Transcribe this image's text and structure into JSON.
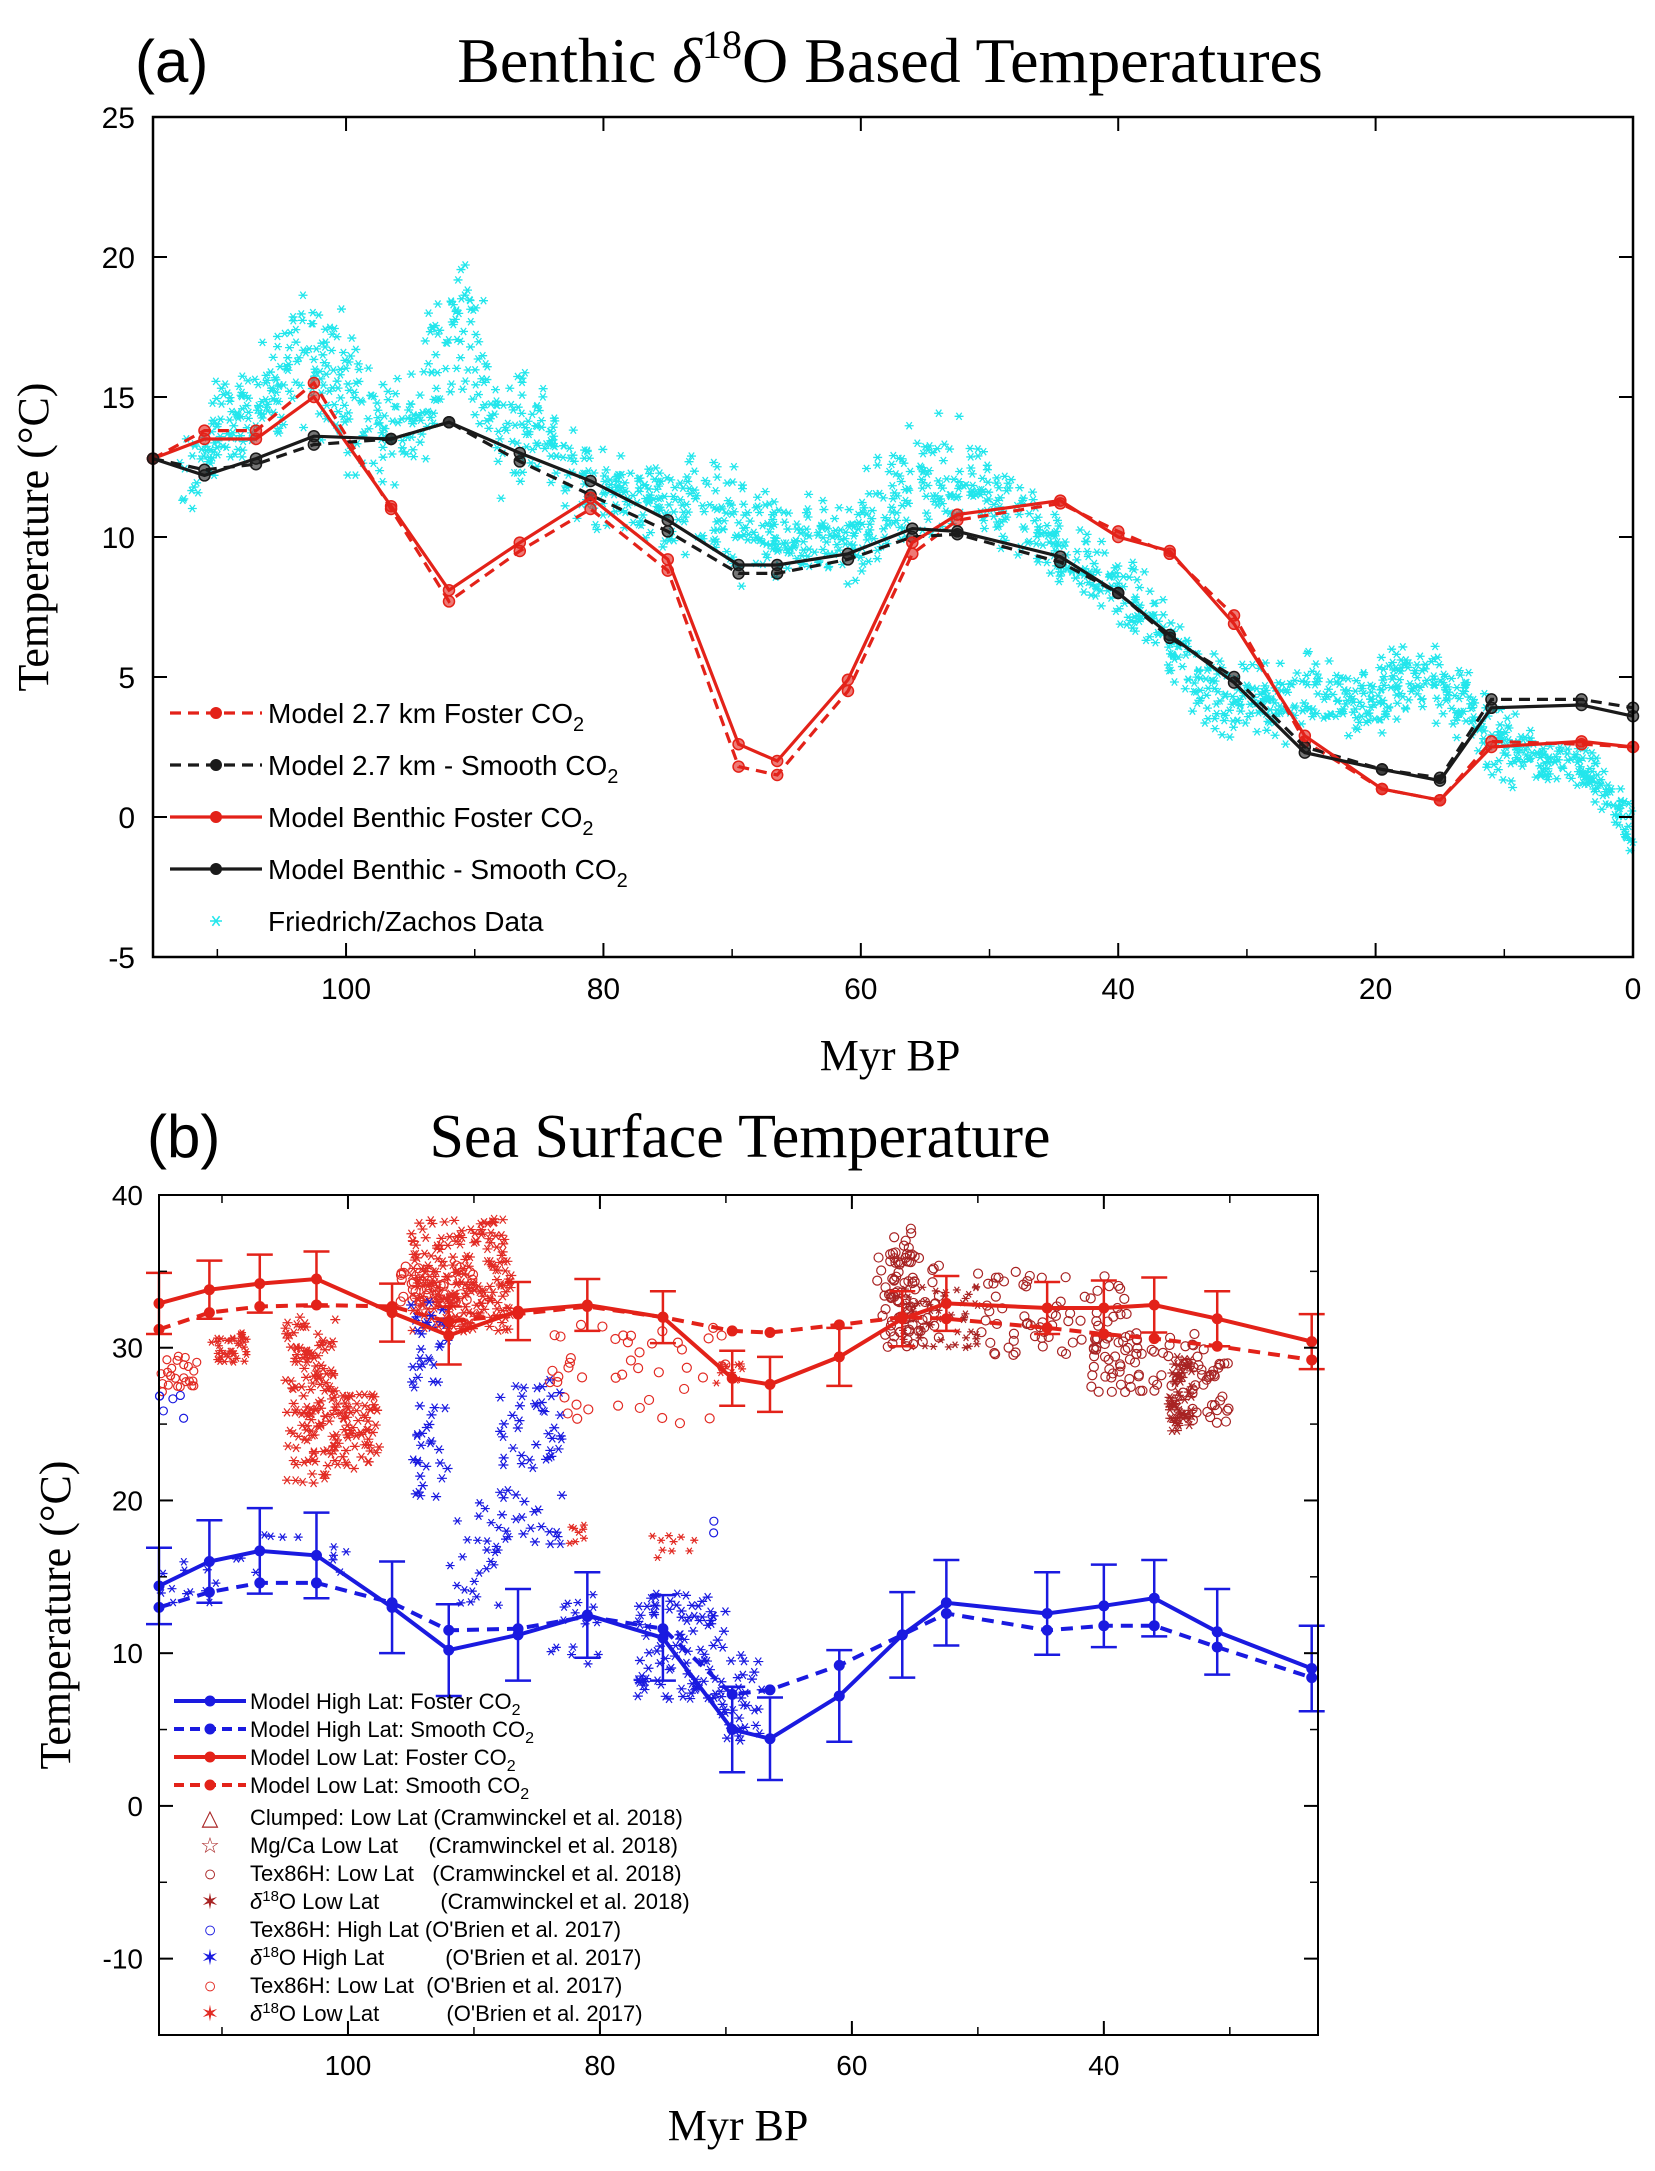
{
  "colors": {
    "red": "#e32219",
    "black": "#1a1a1a",
    "cyan": "#22e6ec",
    "blue": "#1a1ae0",
    "darkred": "#a82323",
    "scatter_red": "#e22b24"
  },
  "chart_data": [
    {
      "panel_label": "(a)",
      "type": "line",
      "title_prefix": "Benthic ",
      "title_delta": "δ",
      "title_sup": "18",
      "title_suffix": "O Based Temperatures",
      "xlabel": "Myr BP",
      "ylabel": "Temperature (°C)",
      "xlim": [
        115,
        0
      ],
      "ylim": [
        -5,
        25
      ],
      "xticks": [
        "100",
        "80",
        "60",
        "40",
        "20",
        "0"
      ],
      "yticks": [
        "25",
        "20",
        "15",
        "10",
        "5",
        "0",
        "-5"
      ],
      "x": [
        115,
        111,
        107,
        102.5,
        96.5,
        92,
        86.5,
        81,
        75,
        69.5,
        66.5,
        61,
        56,
        52.5,
        44.5,
        40,
        36,
        31,
        25.5,
        19.5,
        15,
        11,
        4,
        0
      ],
      "series": [
        {
          "name": "Model 2.7 km Foster CO",
          "sub": "2",
          "style": "dashed",
          "color": "red",
          "values": [
            12.8,
            13.8,
            13.8,
            15.5,
            11.0,
            7.7,
            9.5,
            11.0,
            8.8,
            1.8,
            1.5,
            4.5,
            9.4,
            10.6,
            11.2,
            10.2,
            9.4,
            7.2,
            2.7,
            1.0,
            0.6,
            2.7,
            2.6,
            2.5
          ]
        },
        {
          "name": "Model 2.7 km - Smooth CO",
          "sub": "2",
          "style": "dashed",
          "color": "black",
          "values": [
            12.8,
            12.4,
            12.6,
            13.3,
            13.5,
            14.1,
            12.7,
            11.5,
            10.2,
            8.7,
            8.7,
            9.2,
            10.0,
            10.1,
            9.1,
            8.0,
            6.4,
            5.0,
            2.5,
            1.7,
            1.4,
            4.2,
            4.2,
            3.9
          ]
        },
        {
          "name": "Model Benthic Foster CO",
          "sub": "2",
          "style": "solid",
          "color": "red",
          "values": [
            12.8,
            13.5,
            13.5,
            15.0,
            11.1,
            8.1,
            9.8,
            11.4,
            9.2,
            2.6,
            2.0,
            4.9,
            9.8,
            10.8,
            11.3,
            10.0,
            9.5,
            6.9,
            2.9,
            1.0,
            0.6,
            2.5,
            2.7,
            2.5
          ]
        },
        {
          "name": "Model Benthic - Smooth CO",
          "sub": "2",
          "style": "solid",
          "color": "black",
          "values": [
            12.8,
            12.2,
            12.8,
            13.6,
            13.5,
            14.1,
            13.0,
            12.0,
            10.6,
            9.0,
            9.0,
            9.4,
            10.3,
            10.2,
            9.3,
            8.0,
            6.5,
            4.8,
            2.3,
            1.7,
            1.3,
            3.9,
            4.0,
            3.6
          ]
        }
      ],
      "scatter_legend": "Friedrich/Zachos Data",
      "scatter_envelope": {
        "x": [
          115,
          112,
          109,
          106,
          103,
          100,
          97,
          94,
          91,
          88,
          85,
          82,
          79,
          76,
          73,
          70,
          67,
          64,
          61,
          58,
          55,
          52,
          49,
          46,
          43,
          40,
          37,
          34,
          31,
          28,
          25,
          22,
          19,
          16,
          13,
          10,
          7,
          4,
          2,
          0
        ],
        "center": [
          11,
          12.5,
          14,
          15,
          17,
          15,
          14,
          15,
          18,
          14,
          14,
          12,
          11.5,
          11.5,
          11,
          10.5,
          10,
          10,
          10,
          11,
          12,
          12,
          11,
          10,
          9,
          8,
          7,
          5,
          4,
          4,
          4.5,
          4,
          4.5,
          5,
          4,
          2.5,
          2,
          1.8,
          1,
          -0.5
        ],
        "spread": [
          1.5,
          2,
          2,
          2.5,
          3,
          3,
          2,
          2.5,
          3,
          2.5,
          2,
          1.5,
          1.5,
          2,
          2,
          2,
          1.5,
          1.5,
          1.5,
          2,
          2.5,
          2,
          1.5,
          1.5,
          1.5,
          1.5,
          1.5,
          1.5,
          1.5,
          1.5,
          1.5,
          1.5,
          1.5,
          1.5,
          1.5,
          1.5,
          1.0,
          1.0,
          1.0,
          1.2
        ]
      }
    },
    {
      "panel_label": "(b)",
      "type": "line",
      "title": "Sea Surface Temperature",
      "xlabel": "Myr BP",
      "ylabel": "Temperature (°C)",
      "xlim": [
        115,
        23
      ],
      "ylim": [
        -15,
        40
      ],
      "xticks": [
        "100",
        "80",
        "60",
        "40"
      ],
      "yticks": [
        "40",
        "30",
        "20",
        "10",
        "0",
        "-10"
      ],
      "x": [
        115,
        111,
        107,
        102.5,
        96.5,
        92,
        86.5,
        81,
        75,
        69.5,
        66.5,
        61,
        56,
        52.5,
        44.5,
        40,
        36,
        31,
        23.5
      ],
      "series": [
        {
          "name": "Model High Lat: Foster CO",
          "sub": "2",
          "style": "solid",
          "color": "blue",
          "values": [
            14.4,
            16.0,
            16.7,
            16.4,
            13.0,
            10.2,
            11.2,
            12.5,
            11.0,
            5.0,
            4.4,
            7.2,
            11.2,
            13.3,
            12.6,
            13.1,
            13.6,
            11.4,
            9.0
          ],
          "errors": [
            2.5,
            2.7,
            2.8,
            2.8,
            3.0,
            3.0,
            3.0,
            2.8,
            2.8,
            2.8,
            2.7,
            3.0,
            2.8,
            2.8,
            2.7,
            2.7,
            2.5,
            2.8,
            2.8
          ]
        },
        {
          "name": "Model High Lat: Smooth CO",
          "sub": "2",
          "style": "dashed",
          "color": "blue",
          "values": [
            13.0,
            14.0,
            14.6,
            14.6,
            13.3,
            11.5,
            11.6,
            12.4,
            11.6,
            7.3,
            7.6,
            9.2,
            11.2,
            12.6,
            11.5,
            11.8,
            11.8,
            10.4,
            8.4
          ]
        },
        {
          "name": "Model Low Lat: Foster CO",
          "sub": "2",
          "style": "solid",
          "color": "red",
          "values": [
            32.9,
            33.8,
            34.2,
            34.5,
            32.3,
            30.8,
            32.4,
            32.8,
            32.0,
            28.0,
            27.6,
            29.4,
            31.9,
            32.9,
            32.6,
            32.6,
            32.8,
            31.9,
            30.4
          ],
          "errors": [
            2,
            1.9,
            1.9,
            1.8,
            1.9,
            1.9,
            1.9,
            1.7,
            1.7,
            1.8,
            1.8,
            1.9,
            1.8,
            1.8,
            1.7,
            1.8,
            1.8,
            1.8,
            1.8
          ]
        },
        {
          "name": "Model Low Lat: Smooth CO",
          "sub": "2",
          "style": "dashed",
          "color": "red",
          "values": [
            31.2,
            32.3,
            32.7,
            32.8,
            32.7,
            31.7,
            32.2,
            32.7,
            32.0,
            31.1,
            31.0,
            31.5,
            32.0,
            31.9,
            31.3,
            30.9,
            30.6,
            30.1,
            29.2
          ]
        }
      ],
      "proxy_legend": [
        {
          "marker": "△",
          "color": "darkred",
          "label": "Clumped: Low Lat (Cramwinckel et al. 2018)"
        },
        {
          "marker": "☆",
          "color": "darkred",
          "label": "Mg/Ca Low Lat     (Cramwinckel et al. 2018)"
        },
        {
          "marker": "○",
          "color": "darkred",
          "label": "Tex86H: Low Lat   (Cramwinckel et al. 2018)"
        },
        {
          "marker": "✶",
          "color": "darkred",
          "delta": "δ",
          "sup": "18",
          "label": "O Low Lat          (Cramwinckel et al. 2018)"
        },
        {
          "marker": "○",
          "color": "blue",
          "label": "Tex86H: High Lat (O'Brien et al. 2017)"
        },
        {
          "marker": "✶",
          "color": "blue",
          "delta": "δ",
          "sup": "18",
          "label": "O High Lat          (O'Brien et al. 2017)"
        },
        {
          "marker": "○",
          "color": "scatter_red",
          "label": "Tex86H: Low Lat  (O'Brien et al. 2017)"
        },
        {
          "marker": "✶",
          "color": "scatter_red",
          "delta": "δ",
          "sup": "18",
          "label": "O Low Lat           (O'Brien et al. 2017)"
        }
      ]
    }
  ]
}
